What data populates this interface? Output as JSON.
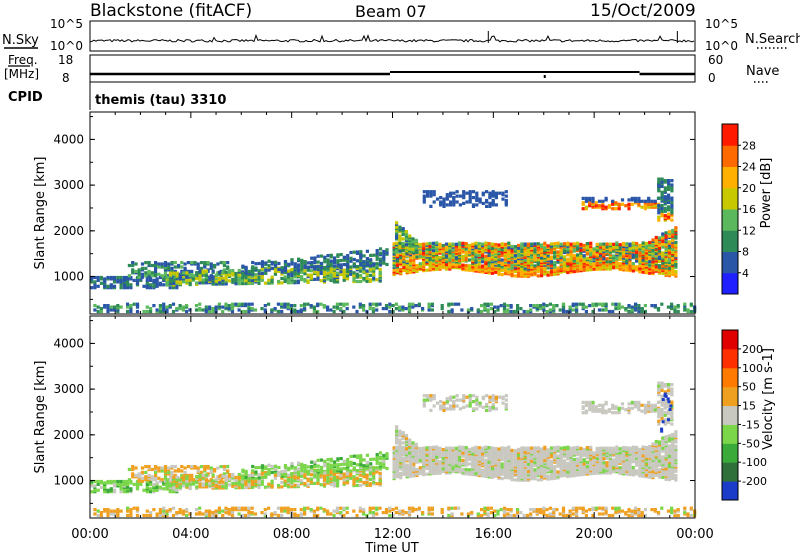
{
  "header": {
    "title": "Blackstone (fitACF)",
    "beam": "Beam 07",
    "date": "15/Oct/2009"
  },
  "top_panels": {
    "nsky_label": "N.Sky",
    "nsearch_label": "N.Search",
    "nsky_ticks": [
      "10^5",
      "10^0"
    ],
    "nsearch_ticks": [
      "10^5",
      "10^0"
    ],
    "freq_label_1": "Freq.",
    "freq_label_2": "[MHz]",
    "freq_ticks": [
      "18",
      "8"
    ],
    "nave_label": "Nave",
    "nave_ticks": [
      "60",
      "0"
    ],
    "cpid_label": "CPID",
    "cpid_value": "themis (tau) 3310"
  },
  "chart_data": [
    {
      "type": "heatmap",
      "quantity": "Power",
      "ylabel": "Slant Range [km]",
      "xlabel": "Time UT",
      "x_ticks": [
        "00:00",
        "04:00",
        "08:00",
        "12:00",
        "16:00",
        "20:00",
        "00:00"
      ],
      "xlim_hours": [
        0,
        24
      ],
      "ylim": [
        180,
        4600
      ],
      "y_ticks": [
        1000,
        2000,
        3000,
        4000
      ],
      "colorbar_label": "Power [dB]",
      "colorbar_ticks": [
        4,
        8,
        12,
        16,
        20,
        24,
        28
      ],
      "colorbar_range": [
        0,
        30
      ],
      "colorbar_colors": [
        "#1f1fff",
        "#2a56a8",
        "#2e8b57",
        "#5cb85c",
        "#c8c800",
        "#ffb000",
        "#ff6a00",
        "#ff1a00"
      ]
    },
    {
      "type": "heatmap",
      "quantity": "Velocity",
      "ylabel": "Slant Range [km]",
      "xlabel": "Time UT",
      "x_ticks": [
        "00:00",
        "04:00",
        "08:00",
        "12:00",
        "16:00",
        "20:00",
        "00:00"
      ],
      "xlim_hours": [
        0,
        24
      ],
      "ylim": [
        180,
        4600
      ],
      "y_ticks": [
        1000,
        2000,
        3000,
        4000
      ],
      "colorbar_label": "Velocity [m s-1]",
      "colorbar_ticks": [
        "200",
        "100",
        "50",
        "15",
        "-15",
        "-50",
        "-100",
        "-200"
      ],
      "colorbar_colors": [
        "#1a3cc8",
        "#2f6f3a",
        "#3aaa3a",
        "#7bd64a",
        "#c8c8c0",
        "#f0a020",
        "#ff7a00",
        "#ff3000",
        "#e00000"
      ]
    }
  ],
  "x_axis": {
    "ticks": [
      "00:00",
      "04:00",
      "08:00",
      "12:00",
      "16:00",
      "20:00",
      "00:00"
    ],
    "label": "Time UT"
  }
}
